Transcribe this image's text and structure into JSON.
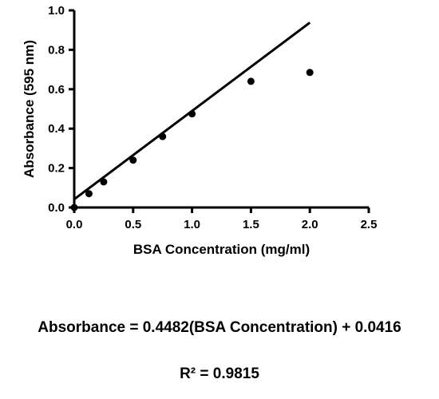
{
  "chart_data": {
    "type": "scatter",
    "xlabel": "BSA Concentration (mg/ml)",
    "ylabel": "Absorbance (595 nm)",
    "xlim": [
      0,
      2.5
    ],
    "ylim": [
      0,
      1.0
    ],
    "x_ticks": [
      "0.0",
      "0.5",
      "1.0",
      "1.5",
      "2.0",
      "2.5"
    ],
    "y_ticks": [
      "0.0",
      "0.2",
      "0.4",
      "0.6",
      "0.8",
      "1.0"
    ],
    "x_tick_values": [
      0,
      0.5,
      1.0,
      1.5,
      2.0,
      2.5
    ],
    "y_tick_values": [
      0,
      0.2,
      0.4,
      0.6,
      0.8,
      1.0
    ],
    "grid": false,
    "legend": "none",
    "series": [
      {
        "x": [
          0,
          0.125,
          0.25,
          0.5,
          0.75,
          1.0,
          1.5,
          2.0
        ],
        "y": [
          0.0,
          0.07,
          0.13,
          0.24,
          0.36,
          0.475,
          0.64,
          0.685
        ]
      }
    ],
    "fit_line": {
      "slope": 0.4482,
      "intercept": 0.0416,
      "x_range": [
        0,
        2.0
      ]
    },
    "equation": "Absorbance = 0.4482(BSA Concentration) + 0.0416",
    "r_squared": "R² = 0.9815"
  }
}
